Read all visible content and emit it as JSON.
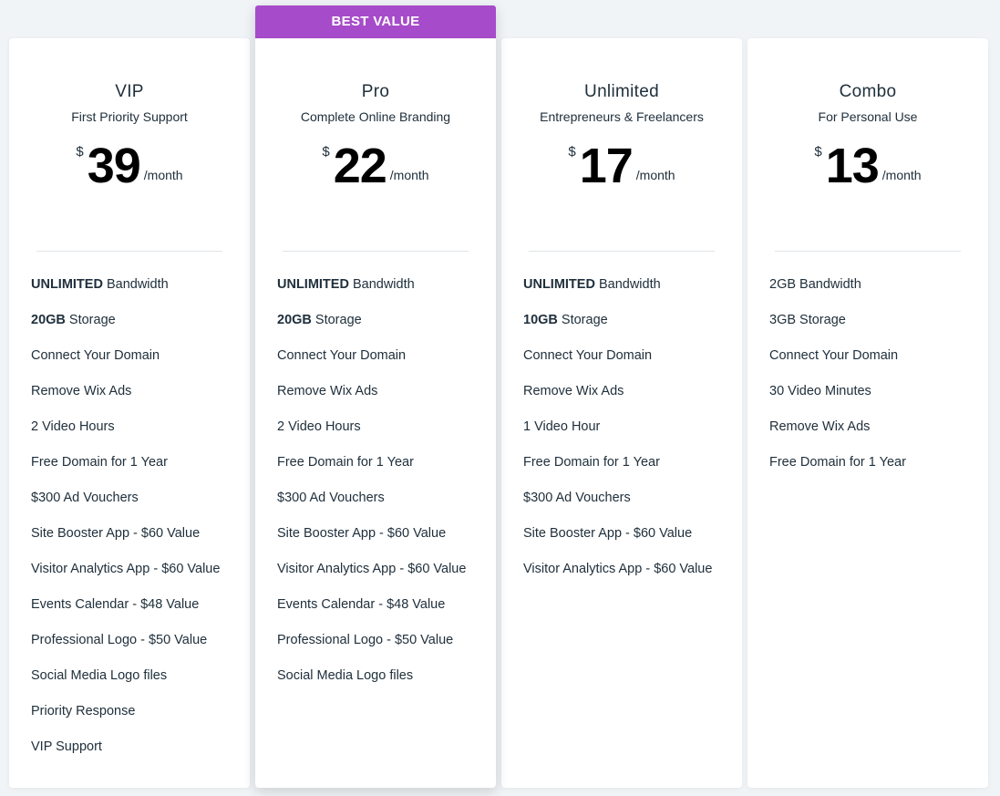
{
  "plans": [
    {
      "name": "VIP",
      "tagline": "First Priority Support",
      "currency": "$",
      "price": "39",
      "period": "/month",
      "features": [
        {
          "strong": "UNLIMITED",
          "text": " Bandwidth"
        },
        {
          "strong": "20GB",
          "text": " Storage"
        },
        {
          "text": "Connect Your Domain"
        },
        {
          "text": "Remove Wix Ads"
        },
        {
          "text": "2 Video Hours"
        },
        {
          "text": "Free Domain for 1 Year"
        },
        {
          "text": "$300 Ad Vouchers"
        },
        {
          "text": "Site Booster App - $60 Value"
        },
        {
          "text": "Visitor Analytics App - $60 Value"
        },
        {
          "text": "Events Calendar - $48 Value"
        },
        {
          "text": "Professional Logo - $50 Value"
        },
        {
          "text": "Social Media Logo files"
        },
        {
          "text": "Priority Response"
        },
        {
          "text": "VIP Support"
        }
      ]
    },
    {
      "name": "Pro",
      "tagline": "Complete Online Branding",
      "currency": "$",
      "price": "22",
      "period": "/month",
      "ribbon": "BEST VALUE",
      "features": [
        {
          "strong": "UNLIMITED",
          "text": " Bandwidth"
        },
        {
          "strong": "20GB",
          "text": " Storage"
        },
        {
          "text": "Connect Your Domain"
        },
        {
          "text": "Remove Wix Ads"
        },
        {
          "text": "2 Video Hours"
        },
        {
          "text": "Free Domain for 1 Year"
        },
        {
          "text": "$300 Ad Vouchers"
        },
        {
          "text": "Site Booster App - $60 Value"
        },
        {
          "text": "Visitor Analytics App - $60 Value"
        },
        {
          "text": "Events Calendar - $48 Value"
        },
        {
          "text": "Professional Logo - $50 Value"
        },
        {
          "text": "Social Media Logo files"
        }
      ]
    },
    {
      "name": "Unlimited",
      "tagline": "Entrepreneurs & Freelancers",
      "currency": "$",
      "price": "17",
      "period": "/month",
      "features": [
        {
          "strong": "UNLIMITED",
          "text": " Bandwidth"
        },
        {
          "strong": "10GB",
          "text": " Storage"
        },
        {
          "text": "Connect Your Domain"
        },
        {
          "text": "Remove Wix Ads"
        },
        {
          "text": "1 Video Hour"
        },
        {
          "text": "Free Domain for 1 Year"
        },
        {
          "text": "$300 Ad Vouchers"
        },
        {
          "text": "Site Booster App - $60 Value"
        },
        {
          "text": "Visitor Analytics App - $60 Value"
        }
      ]
    },
    {
      "name": "Combo",
      "tagline": "For Personal Use",
      "currency": "$",
      "price": "13",
      "period": "/month",
      "features": [
        {
          "text": "2GB Bandwidth"
        },
        {
          "text": "3GB Storage"
        },
        {
          "text": "Connect Your Domain"
        },
        {
          "text": "30 Video Minutes"
        },
        {
          "text": "Remove Wix Ads"
        },
        {
          "text": "Free Domain for 1 Year"
        }
      ]
    }
  ]
}
